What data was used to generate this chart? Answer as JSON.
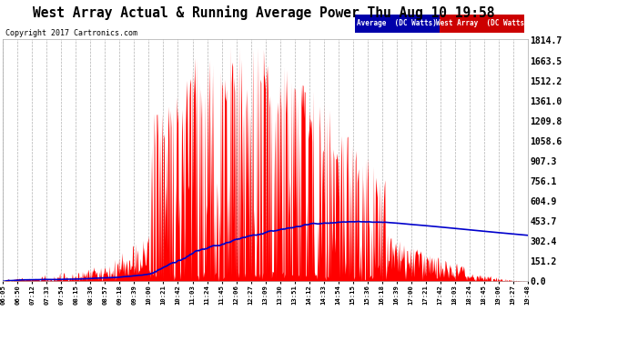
{
  "title": "West Array Actual & Running Average Power Thu Aug 10 19:58",
  "copyright": "Copyright 2017 Cartronics.com",
  "yticks": [
    0.0,
    151.2,
    302.4,
    453.7,
    604.9,
    756.1,
    907.3,
    1058.6,
    1209.8,
    1361.0,
    1512.2,
    1663.5,
    1814.7
  ],
  "ymax": 1814.7,
  "ymin": 0.0,
  "legend_labels": [
    "Average  (DC Watts)",
    "West Array  (DC Watts)"
  ],
  "plot_bg_color": "#ffffff",
  "grid_color": "#aaaaaa",
  "bar_color": "#ff0000",
  "line_color": "#0000cc",
  "fig_bg": "#ffffff",
  "legend_blue_bg": "#0000aa",
  "legend_red_bg": "#cc0000",
  "x_labels": [
    "06:05",
    "06:50",
    "07:12",
    "07:33",
    "07:54",
    "08:15",
    "08:36",
    "08:57",
    "09:18",
    "09:39",
    "10:00",
    "10:21",
    "10:42",
    "11:03",
    "11:24",
    "11:45",
    "12:06",
    "12:27",
    "13:09",
    "13:30",
    "13:51",
    "14:12",
    "14:33",
    "14:54",
    "15:15",
    "15:36",
    "16:18",
    "16:39",
    "17:00",
    "17:21",
    "17:42",
    "18:03",
    "18:24",
    "18:45",
    "19:06",
    "19:27",
    "19:48"
  ]
}
